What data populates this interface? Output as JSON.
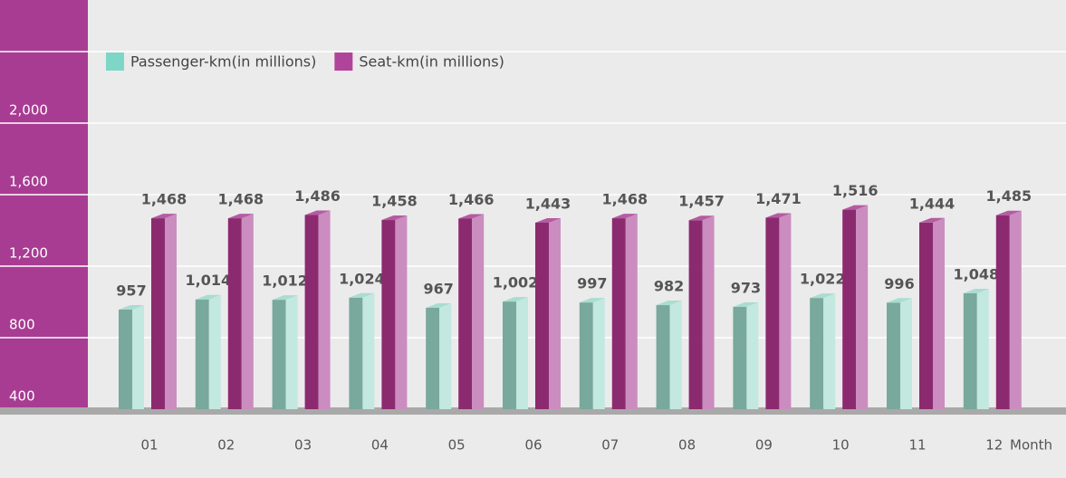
{
  "chart_data": {
    "type": "bar3d",
    "categories": [
      "01",
      "02",
      "03",
      "04",
      "05",
      "06",
      "07",
      "08",
      "09",
      "10",
      "11",
      "12"
    ],
    "x_label": "Month",
    "series": [
      {
        "name": "Passenger-km(in millions)",
        "color": "#7ed6c7",
        "values": [
          957,
          1014,
          1012,
          1024,
          967,
          1002,
          997,
          982,
          973,
          1022,
          996,
          1048
        ],
        "value_labels": [
          "957",
          "1,014",
          "1,012",
          "1,024",
          "967",
          "1,002",
          "997",
          "982",
          "973",
          "1,022",
          "996",
          "1,048"
        ]
      },
      {
        "name": "Seat-km(in millions)",
        "color": "#b0449a",
        "values": [
          1468,
          1468,
          1486,
          1458,
          1466,
          1443,
          1468,
          1457,
          1471,
          1516,
          1444,
          1485
        ],
        "value_labels": [
          "1,468",
          "1,468",
          "1,486",
          "1,458",
          "1,466",
          "1,443",
          "1,468",
          "1,457",
          "1,471",
          "1,516",
          "1,444",
          "1,485"
        ]
      }
    ],
    "ylim": [
      400,
      2400
    ],
    "yticks": [
      {
        "value": 400,
        "label": "400"
      },
      {
        "value": 800,
        "label": "800"
      },
      {
        "value": 1200,
        "label": "1,200"
      },
      {
        "value": 1600,
        "label": "1,600"
      },
      {
        "value": 2000,
        "label": "2,000"
      }
    ],
    "grid": true
  }
}
